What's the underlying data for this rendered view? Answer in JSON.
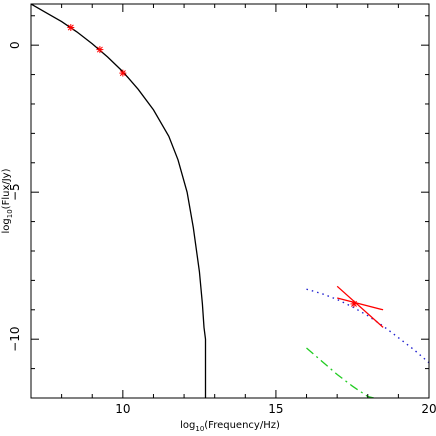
{
  "chart_data": {
    "type": "line",
    "title": "",
    "xlabel": {
      "prefix": "log",
      "sub": "10",
      "rest": "(Frequency/Hz)"
    },
    "ylabel": {
      "prefix": "log",
      "sub": "10",
      "rest": "(Flux/Jy)"
    },
    "xlim": [
      7,
      20
    ],
    "ylim": [
      -12,
      1.4
    ],
    "xticks": [
      10,
      15,
      20
    ],
    "xtick_labels": [
      "10",
      "15",
      "20"
    ],
    "yticks": [
      0,
      -5,
      -10
    ],
    "ytick_labels": [
      "0",
      "−5",
      "−10"
    ],
    "grid": false,
    "legend": "none",
    "series": [
      {
        "style": "solid",
        "color": "#000000",
        "x": [
          7.0,
          7.5,
          8.0,
          8.5,
          9.0,
          9.5,
          10.0,
          10.5,
          11.0,
          11.5,
          11.8,
          12.1,
          12.3,
          12.5,
          12.6,
          12.65,
          12.7,
          12.7
        ],
        "y": [
          1.4,
          1.1,
          0.8,
          0.45,
          0.05,
          -0.4,
          -0.9,
          -1.5,
          -2.2,
          -3.1,
          -3.9,
          -5.0,
          -6.2,
          -7.7,
          -8.8,
          -9.6,
          -10.0,
          -12.0
        ]
      },
      {
        "style": "dotted",
        "color": "#1f1fcf",
        "x": [
          16.0,
          16.5,
          17.0,
          17.5,
          18.0,
          18.5,
          19.0,
          19.5,
          20.0
        ],
        "y": [
          -8.3,
          -8.45,
          -8.65,
          -8.9,
          -9.2,
          -9.55,
          -9.95,
          -10.35,
          -10.8
        ]
      },
      {
        "style": "dashdot",
        "color": "#22cc22",
        "x": [
          16.0,
          16.5,
          17.0,
          17.5,
          18.0,
          18.2
        ],
        "y": [
          -10.3,
          -10.75,
          -11.2,
          -11.6,
          -11.95,
          -12.0
        ]
      },
      {
        "style": "solid",
        "color": "#ff0000",
        "x": [
          17.0,
          18.5
        ],
        "y": [
          -8.2,
          -9.6
        ]
      },
      {
        "style": "solid",
        "color": "#ff0000",
        "x": [
          17.0,
          18.5
        ],
        "y": [
          -8.6,
          -9.0
        ]
      }
    ],
    "points": {
      "color": "#ff0000",
      "marker": "asterisk",
      "x": [
        8.3,
        9.25,
        10.0,
        17.55
      ],
      "y": [
        0.6,
        -0.15,
        -0.95,
        -8.8
      ]
    }
  }
}
